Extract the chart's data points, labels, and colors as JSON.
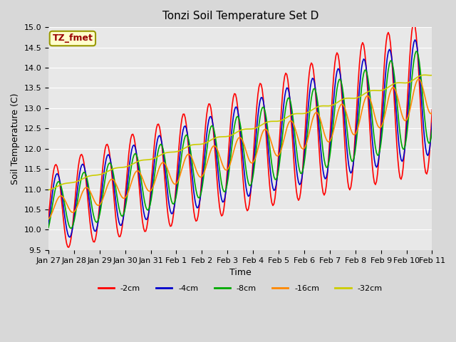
{
  "title": "Tonzi Soil Temperature Set D",
  "xlabel": "Time",
  "ylabel": "Soil Temperature (C)",
  "legend_label": "TZ_fmet",
  "series_labels": [
    "-2cm",
    "-4cm",
    "-8cm",
    "-16cm",
    "-32cm"
  ],
  "series_colors": [
    "#ff0000",
    "#0000cc",
    "#00aa00",
    "#ff8800",
    "#cccc00"
  ],
  "ylim": [
    9.5,
    15.0
  ],
  "yticks": [
    9.5,
    10.0,
    10.5,
    11.0,
    11.5,
    12.0,
    12.5,
    13.0,
    13.5,
    14.0,
    14.5,
    15.0
  ],
  "xtick_labels": [
    "Jan 27",
    "Jan 28",
    "Jan 29",
    "Jan 30",
    "Jan 31",
    "Feb 1",
    "Feb 2",
    "Feb 3",
    "Feb 4",
    "Feb 5",
    "Feb 6",
    "Feb 7",
    "Feb 8",
    "Feb 9",
    "Feb 10",
    "Feb 11"
  ],
  "bg_color": "#e8e8e8",
  "plot_bg_color": "#e8e8e8",
  "legend_box_color": "#ffffcc",
  "legend_box_edge": "#999900",
  "legend_text_color": "#990000"
}
